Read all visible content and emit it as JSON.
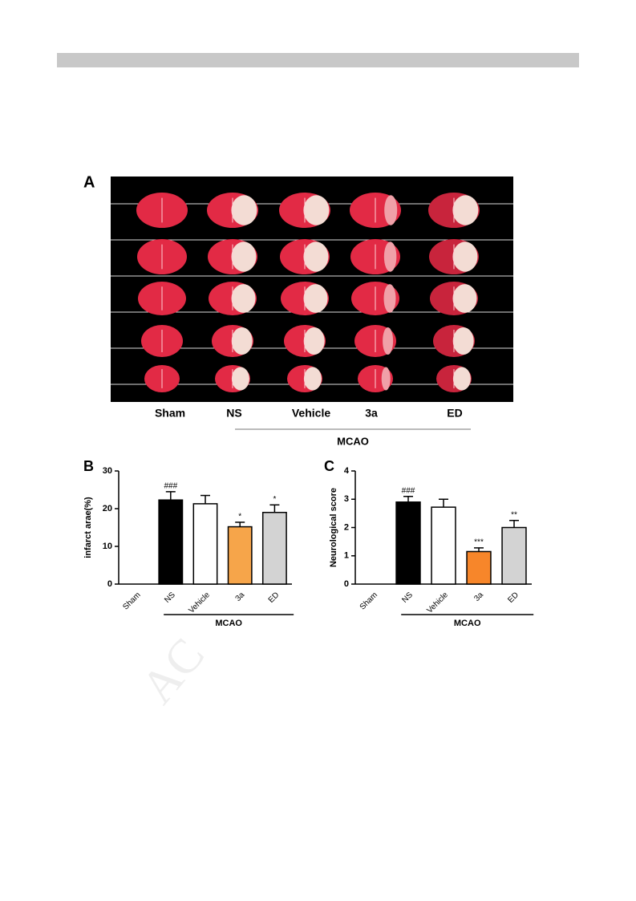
{
  "header_bar": true,
  "figure": {
    "panel_a": {
      "panel_label": "A",
      "columns": [
        "Sham",
        "NS",
        "Vehicle",
        "3a",
        "ED"
      ],
      "group_label": "MCAO"
    },
    "watermark": "AC"
  },
  "chart_data": [
    {
      "type": "bar",
      "panel_label": "B",
      "y_label": "infarct arae(%)",
      "categories": [
        "Sham",
        "NS",
        "Vehicle",
        "3a",
        "ED"
      ],
      "values": [
        0,
        22.3,
        21.3,
        15.2,
        19.0
      ],
      "errors": [
        0,
        2.2,
        2.2,
        1.2,
        2.0
      ],
      "bar_colors": [
        "#ffffff",
        "#000000",
        "#ffffff",
        "#f6a54a",
        "#d3d3d3"
      ],
      "annotations": [
        null,
        "###",
        null,
        "*",
        "*"
      ],
      "group_label": "MCAO",
      "ylim": [
        0,
        30
      ],
      "yticks": [
        0,
        10,
        20,
        30
      ]
    },
    {
      "type": "bar",
      "panel_label": "C",
      "y_label": "Neurological score",
      "categories": [
        "Sham",
        "NS",
        "Vehicle",
        "3a",
        "ED"
      ],
      "values": [
        0,
        2.9,
        2.72,
        1.15,
        2.0
      ],
      "errors": [
        0,
        0.2,
        0.28,
        0.13,
        0.25
      ],
      "bar_colors": [
        "#ffffff",
        "#000000",
        "#ffffff",
        "#f7862a",
        "#d3d3d3"
      ],
      "annotations": [
        null,
        "###",
        null,
        "***",
        "**"
      ],
      "group_label": "MCAO",
      "ylim": [
        0,
        4
      ],
      "yticks": [
        0,
        1,
        2,
        3,
        4
      ]
    }
  ]
}
